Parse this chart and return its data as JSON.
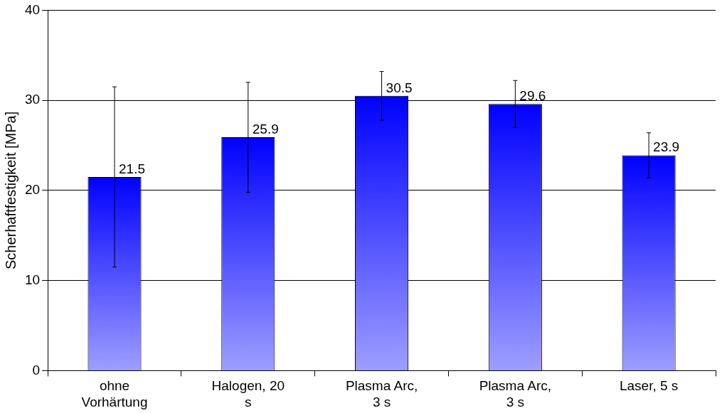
{
  "chart_data": {
    "type": "bar",
    "ylabel": "Scherhaftfestigkeit [MPa]",
    "categories": [
      "ohne Vorhärtung",
      "Halogen, 20 s",
      "Plasma Arc, 3 s",
      "Plasma Arc, 3 s",
      "Laser, 5 s"
    ],
    "values": [
      21.5,
      25.9,
      30.5,
      29.6,
      23.9
    ],
    "errors": [
      10,
      6.1,
      2.7,
      2.6,
      2.5
    ],
    "color": "#0000ff",
    "data_labels": true,
    "ylim": [
      0,
      40
    ],
    "yticks": [
      0,
      10,
      20,
      30,
      40
    ],
    "grid": "y",
    "legend": false
  }
}
